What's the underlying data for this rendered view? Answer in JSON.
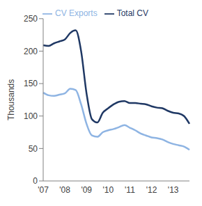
{
  "chart_data": {
    "type": "line",
    "y_label": "Thousands",
    "categories": [
      "'07",
      null,
      null,
      null,
      "'08",
      null,
      null,
      null,
      "'09",
      null,
      null,
      null,
      "'10",
      null,
      null,
      null,
      "'11",
      null,
      null,
      null,
      "'12",
      null,
      null,
      null,
      "'13",
      null,
      null,
      null
    ],
    "series": [
      {
        "name": "Total CV",
        "color": "#1f3864",
        "values": [
          209,
          208,
          212,
          215,
          218,
          228,
          232,
          200,
          135,
          95,
          90,
          105,
          112,
          118,
          122,
          123,
          120,
          120,
          119,
          118,
          115,
          113,
          112,
          108,
          105,
          104,
          100,
          88
        ]
      },
      {
        "name": "CV Exports",
        "color": "#8eb4e3",
        "values": [
          136,
          132,
          131,
          133,
          135,
          142,
          140,
          118,
          88,
          70,
          68,
          75,
          78,
          80,
          83,
          86,
          82,
          78,
          73,
          70,
          67,
          66,
          64,
          60,
          57,
          55,
          53,
          48
        ]
      }
    ],
    "ylim": [
      0,
      250
    ],
    "yticks": [
      0,
      50,
      100,
      150,
      200,
      250
    ],
    "grid": false,
    "legend": "top"
  }
}
